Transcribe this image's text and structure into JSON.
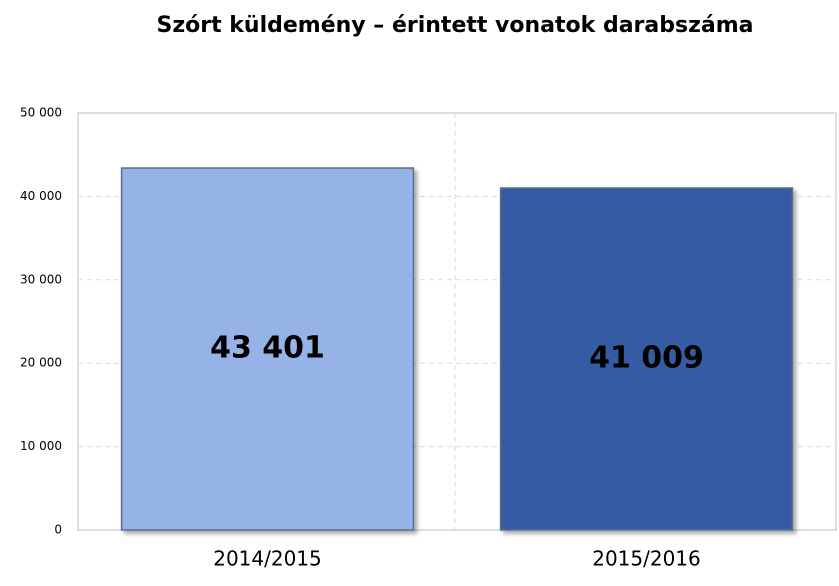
{
  "chart_data": {
    "type": "bar",
    "title": "Szórt küldemény – érintett vonatok darabszáma",
    "categories": [
      "2014/2015",
      "2015/2016"
    ],
    "values": [
      43401,
      41009
    ],
    "value_labels": [
      "43 401",
      "41 009"
    ],
    "colors": [
      "#95b3e6",
      "#355ca2"
    ],
    "ylim": [
      0,
      50000
    ],
    "yticks": [
      0,
      {
        "value": 10000,
        "label": "10 000"
      },
      {
        "value": 20000,
        "label": "20 000"
      },
      {
        "value": 30000,
        "label": "30 000"
      },
      {
        "value": 40000,
        "label": "40 000"
      },
      {
        "value": 50000,
        "label": "50 000"
      }
    ],
    "grid": true
  }
}
